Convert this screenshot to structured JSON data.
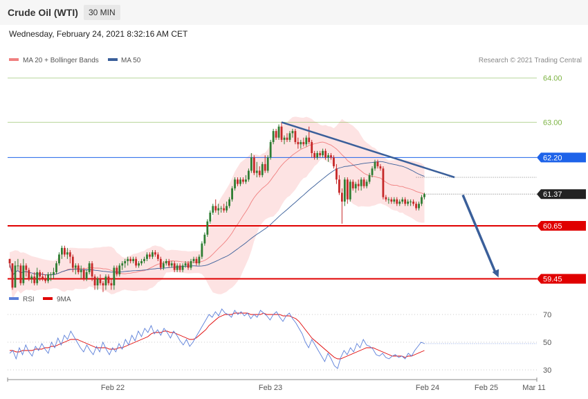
{
  "header": {
    "title": "Crude Oil (WTI)",
    "interval": "30 MIN"
  },
  "datetime": "Wednesday, February 24, 2021 8:32:16 AM CET",
  "legend": {
    "ma20": "MA 20 + Bollinger Bands",
    "ma50": "MA 50",
    "credit": "Research © 2021 Trading Central",
    "rsi": "RSI",
    "ma9": "9MA"
  },
  "colors": {
    "candle_up": "#2e7d32",
    "candle_down": "#c62828",
    "ma20": "#f08080",
    "bollinger_fill": "#fde0e0",
    "ma50": "#3a5f9a",
    "resistance": "#7cb342",
    "pivot": "#1e63e9",
    "support": "#e00000",
    "trendline": "#3a5f9a",
    "rsi": "#5b7fd9",
    "rsi_ma": "#e00000",
    "price_tag": "#222222"
  },
  "chart_data": [
    {
      "type": "candlestick",
      "x_axis_labels": [
        "Feb 22",
        "Feb 23",
        "Feb 24",
        "Feb 25",
        "Mar 11"
      ],
      "price_range": [
        59.3,
        64.2
      ],
      "levels": [
        {
          "label": "64.00",
          "value": 64.0,
          "kind": "resistance"
        },
        {
          "label": "63.00",
          "value": 63.0,
          "kind": "resistance"
        },
        {
          "label": "62.20",
          "value": 62.2,
          "kind": "pivot"
        },
        {
          "label": "61.37",
          "value": 61.37,
          "kind": "last"
        },
        {
          "label": "60.65",
          "value": 60.65,
          "kind": "support"
        },
        {
          "label": "59.45",
          "value": 59.45,
          "kind": "support"
        }
      ],
      "trendline": {
        "from_index": 99,
        "from_value": 63.0,
        "to_index": 162,
        "to_value": 61.75
      },
      "projection": {
        "from_index": 165,
        "from_value": 61.35,
        "to_index": 178,
        "to_value": 59.48
      },
      "candles": [
        [
          59.9,
          59.9,
          59.7,
          59.8
        ],
        [
          59.8,
          59.8,
          59.2,
          59.25
        ],
        [
          59.25,
          59.85,
          59.25,
          59.75
        ],
        [
          59.75,
          59.9,
          59.65,
          59.75
        ],
        [
          59.75,
          59.8,
          59.3,
          59.35
        ],
        [
          59.35,
          59.9,
          59.3,
          59.75
        ],
        [
          59.75,
          59.8,
          59.5,
          59.65
        ],
        [
          59.65,
          59.7,
          59.4,
          59.45
        ],
        [
          59.45,
          59.55,
          59.35,
          59.5
        ],
        [
          59.5,
          59.6,
          59.3,
          59.35
        ],
        [
          59.35,
          59.7,
          59.3,
          59.6
        ],
        [
          59.6,
          59.65,
          59.4,
          59.5
        ],
        [
          59.5,
          59.6,
          59.4,
          59.45
        ],
        [
          59.45,
          59.55,
          59.35,
          59.4
        ],
        [
          59.4,
          59.6,
          59.35,
          59.55
        ],
        [
          59.55,
          59.6,
          59.4,
          59.55
        ],
        [
          59.55,
          59.7,
          59.45,
          59.6
        ],
        [
          59.6,
          59.85,
          59.55,
          59.8
        ],
        [
          59.8,
          60.05,
          59.75,
          60.0
        ],
        [
          60.0,
          60.2,
          59.9,
          60.15
        ],
        [
          60.15,
          60.2,
          59.95,
          60.0
        ],
        [
          60.0,
          60.15,
          59.9,
          60.05
        ],
        [
          60.05,
          60.1,
          59.8,
          59.95
        ],
        [
          59.95,
          60.0,
          59.6,
          59.7
        ],
        [
          59.7,
          59.8,
          59.55,
          59.75
        ],
        [
          59.75,
          59.8,
          59.55,
          59.6
        ],
        [
          59.6,
          59.75,
          59.45,
          59.65
        ],
        [
          59.65,
          59.7,
          59.4,
          59.45
        ],
        [
          59.45,
          59.65,
          59.4,
          59.6
        ],
        [
          59.6,
          59.85,
          59.55,
          59.8
        ],
        [
          59.8,
          59.85,
          59.4,
          59.5
        ],
        [
          59.5,
          59.55,
          59.2,
          59.3
        ],
        [
          59.3,
          59.5,
          59.2,
          59.45
        ],
        [
          59.45,
          59.55,
          59.3,
          59.35
        ],
        [
          59.35,
          59.4,
          59.15,
          59.3
        ],
        [
          59.3,
          59.55,
          59.2,
          59.5
        ],
        [
          59.5,
          59.55,
          59.3,
          59.35
        ],
        [
          59.35,
          59.45,
          59.2,
          59.3
        ],
        [
          59.3,
          59.75,
          59.2,
          59.7
        ],
        [
          59.7,
          59.75,
          59.5,
          59.55
        ],
        [
          59.55,
          59.8,
          59.5,
          59.75
        ],
        [
          59.75,
          59.85,
          59.65,
          59.8
        ],
        [
          59.8,
          59.9,
          59.7,
          59.85
        ],
        [
          59.85,
          59.95,
          59.75,
          59.9
        ],
        [
          59.9,
          59.95,
          59.8,
          59.85
        ],
        [
          59.85,
          59.95,
          59.8,
          59.9
        ],
        [
          59.9,
          59.95,
          59.7,
          59.75
        ],
        [
          59.75,
          59.85,
          59.7,
          59.8
        ],
        [
          59.8,
          59.9,
          59.75,
          59.85
        ],
        [
          59.85,
          59.95,
          59.8,
          59.9
        ],
        [
          59.9,
          60.05,
          59.85,
          60.0
        ],
        [
          60.0,
          60.05,
          59.9,
          59.95
        ],
        [
          59.95,
          60.1,
          59.9,
          60.05
        ],
        [
          60.05,
          60.1,
          59.95,
          60.0
        ],
        [
          60.0,
          60.05,
          59.85,
          59.9
        ],
        [
          59.9,
          59.95,
          59.65,
          59.7
        ],
        [
          59.7,
          59.85,
          59.65,
          59.8
        ],
        [
          59.8,
          59.9,
          59.75,
          59.85
        ],
        [
          59.85,
          59.9,
          59.7,
          59.75
        ],
        [
          59.75,
          59.85,
          59.7,
          59.8
        ],
        [
          59.8,
          59.85,
          59.6,
          59.65
        ],
        [
          59.65,
          59.8,
          59.6,
          59.75
        ],
        [
          59.75,
          59.8,
          59.6,
          59.65
        ],
        [
          59.65,
          59.8,
          59.6,
          59.75
        ],
        [
          59.75,
          59.85,
          59.7,
          59.8
        ],
        [
          59.8,
          59.85,
          59.65,
          59.7
        ],
        [
          59.7,
          59.9,
          59.65,
          59.85
        ],
        [
          59.85,
          59.95,
          59.8,
          59.9
        ],
        [
          59.9,
          59.95,
          59.75,
          59.8
        ],
        [
          59.8,
          60.0,
          59.75,
          59.95
        ],
        [
          59.95,
          60.3,
          59.9,
          60.25
        ],
        [
          60.25,
          60.5,
          60.2,
          60.45
        ],
        [
          60.45,
          60.8,
          60.4,
          60.75
        ],
        [
          60.75,
          61.0,
          60.7,
          60.95
        ],
        [
          60.95,
          61.15,
          60.9,
          61.1
        ],
        [
          61.1,
          61.25,
          60.95,
          61.0
        ],
        [
          61.0,
          61.15,
          60.9,
          61.05
        ],
        [
          61.05,
          61.1,
          60.95,
          61.05
        ],
        [
          61.05,
          61.15,
          60.95,
          61.0
        ],
        [
          61.0,
          61.2,
          60.95,
          61.1
        ],
        [
          61.1,
          61.3,
          61.05,
          61.25
        ],
        [
          61.25,
          61.55,
          61.2,
          61.5
        ],
        [
          61.5,
          61.75,
          61.45,
          61.7
        ],
        [
          61.7,
          61.75,
          61.55,
          61.6
        ],
        [
          61.6,
          61.75,
          61.55,
          61.7
        ],
        [
          61.7,
          61.75,
          61.6,
          61.65
        ],
        [
          61.65,
          61.8,
          61.6,
          61.7
        ],
        [
          61.7,
          61.95,
          61.65,
          61.9
        ],
        [
          61.9,
          62.3,
          61.85,
          62.2
        ],
        [
          62.2,
          62.25,
          61.8,
          61.85
        ],
        [
          61.85,
          62.1,
          61.75,
          61.9
        ],
        [
          61.9,
          62.0,
          61.75,
          61.8
        ],
        [
          61.8,
          62.1,
          61.75,
          62.05
        ],
        [
          62.05,
          62.25,
          61.85,
          61.9
        ],
        [
          61.9,
          62.25,
          61.85,
          62.2
        ],
        [
          62.2,
          62.6,
          62.15,
          62.55
        ],
        [
          62.55,
          62.85,
          62.5,
          62.8
        ],
        [
          62.8,
          62.85,
          62.6,
          62.65
        ],
        [
          62.65,
          62.95,
          62.6,
          62.9
        ],
        [
          62.9,
          63.0,
          62.55,
          62.6
        ],
        [
          62.6,
          62.7,
          62.5,
          62.65
        ],
        [
          62.65,
          62.75,
          62.55,
          62.6
        ],
        [
          62.6,
          62.8,
          62.55,
          62.75
        ],
        [
          62.75,
          62.85,
          62.65,
          62.8
        ],
        [
          62.8,
          62.85,
          62.5,
          62.55
        ],
        [
          62.55,
          62.65,
          62.4,
          62.5
        ],
        [
          62.5,
          62.6,
          62.4,
          62.55
        ],
        [
          62.55,
          62.65,
          62.45,
          62.5
        ],
        [
          62.5,
          62.7,
          62.45,
          62.65
        ],
        [
          62.65,
          62.9,
          62.5,
          62.55
        ],
        [
          62.55,
          62.6,
          62.2,
          62.3
        ],
        [
          62.3,
          62.35,
          62.15,
          62.2
        ],
        [
          62.2,
          62.35,
          62.15,
          62.3
        ],
        [
          62.3,
          62.35,
          62.2,
          62.25
        ],
        [
          62.25,
          62.4,
          62.2,
          62.35
        ],
        [
          62.35,
          62.4,
          62.15,
          62.2
        ],
        [
          62.2,
          62.3,
          62.1,
          62.25
        ],
        [
          62.25,
          62.3,
          62.15,
          62.2
        ],
        [
          62.2,
          62.25,
          61.95,
          62.0
        ],
        [
          61.95,
          62.05,
          61.6,
          61.7
        ],
        [
          61.7,
          61.8,
          61.35,
          61.4
        ],
        [
          61.4,
          61.5,
          60.7,
          61.2
        ],
        [
          61.2,
          61.75,
          61.1,
          61.7
        ],
        [
          61.7,
          61.75,
          61.15,
          61.25
        ],
        [
          61.25,
          61.7,
          61.2,
          61.65
        ],
        [
          61.65,
          61.7,
          61.45,
          61.5
        ],
        [
          61.5,
          61.65,
          61.4,
          61.6
        ],
        [
          61.6,
          61.7,
          61.45,
          61.55
        ],
        [
          61.55,
          61.75,
          61.45,
          61.7
        ],
        [
          61.7,
          61.75,
          61.5,
          61.55
        ],
        [
          61.55,
          61.7,
          61.5,
          61.65
        ],
        [
          61.65,
          61.85,
          61.6,
          61.8
        ],
        [
          61.8,
          62.0,
          61.75,
          61.95
        ],
        [
          61.95,
          62.15,
          61.9,
          62.1
        ],
        [
          62.1,
          62.15,
          61.95,
          62.0
        ],
        [
          62.0,
          62.05,
          61.9,
          61.95
        ],
        [
          61.95,
          62.0,
          61.25,
          61.3
        ],
        [
          61.3,
          61.35,
          61.2,
          61.25
        ],
        [
          61.25,
          61.3,
          61.15,
          61.25
        ],
        [
          61.25,
          61.3,
          61.15,
          61.2
        ],
        [
          61.2,
          61.3,
          61.15,
          61.25
        ],
        [
          61.25,
          61.3,
          61.1,
          61.15
        ],
        [
          61.15,
          61.25,
          61.1,
          61.2
        ],
        [
          61.2,
          61.3,
          61.15,
          61.25
        ],
        [
          61.25,
          61.3,
          61.1,
          61.15
        ],
        [
          61.15,
          61.25,
          61.1,
          61.2
        ],
        [
          61.2,
          61.25,
          61.1,
          61.2
        ],
        [
          61.2,
          61.25,
          61.1,
          61.15
        ],
        [
          61.15,
          61.2,
          61.0,
          61.05
        ],
        [
          61.05,
          61.2,
          61.0,
          61.15
        ],
        [
          61.15,
          61.35,
          61.1,
          61.3
        ],
        [
          61.3,
          61.4,
          61.25,
          61.37
        ]
      ]
    },
    {
      "type": "line",
      "name": "RSI",
      "y_ticks": [
        "70",
        "50",
        "30"
      ],
      "y_range": [
        25,
        75
      ],
      "rsi": [
        42,
        44,
        38,
        46,
        41,
        48,
        43,
        40,
        47,
        44,
        49,
        45,
        42,
        50,
        46,
        53,
        48,
        55,
        52,
        58,
        54,
        50,
        46,
        43,
        48,
        44,
        41,
        47,
        43,
        50,
        45,
        41,
        46,
        43,
        49,
        45,
        52,
        48,
        55,
        51,
        58,
        54,
        60,
        57,
        62,
        56,
        59,
        55,
        60,
        57,
        53,
        58,
        55,
        51,
        48,
        52,
        47,
        50,
        54,
        58,
        62,
        66,
        70,
        68,
        72,
        69,
        74,
        71,
        70,
        68,
        73,
        70,
        72,
        69,
        71,
        67,
        70,
        68,
        73,
        71,
        69,
        66,
        70,
        72,
        68,
        65,
        69,
        71,
        67,
        64,
        60,
        56,
        50,
        46,
        52,
        48,
        44,
        40,
        36,
        42,
        38,
        33,
        31,
        39,
        44,
        41,
        46,
        43,
        49,
        46,
        52,
        48,
        47,
        45,
        41,
        40,
        42,
        39,
        38,
        40,
        41,
        39,
        40,
        38,
        42,
        40,
        44,
        47,
        50,
        49
      ],
      "rsi_ma": [
        44,
        44,
        43,
        43,
        44,
        44,
        44,
        44,
        45,
        45,
        45,
        46,
        46,
        47,
        47,
        48,
        49,
        50,
        51,
        52,
        52,
        52,
        51,
        50,
        49,
        48,
        47,
        46,
        46,
        46,
        46,
        45,
        45,
        45,
        46,
        46,
        47,
        48,
        49,
        50,
        51,
        52,
        53,
        54,
        56,
        57,
        57,
        57,
        58,
        58,
        57,
        57,
        56,
        55,
        54,
        53,
        52,
        52,
        53,
        55,
        57,
        59,
        62,
        64,
        66,
        68,
        69,
        70,
        70,
        70,
        71,
        71,
        71,
        71,
        71,
        70,
        70,
        70,
        70,
        71,
        70,
        70,
        70,
        70,
        70,
        69,
        69,
        69,
        68,
        67,
        65,
        62,
        59,
        56,
        53,
        51,
        49,
        47,
        45,
        43,
        41,
        39,
        38,
        38,
        39,
        40,
        41,
        42,
        43,
        44,
        45,
        46,
        46,
        46,
        45,
        44,
        43,
        42,
        41,
        40,
        40,
        40,
        40,
        39,
        40,
        40,
        41,
        42,
        43,
        44
      ]
    }
  ]
}
